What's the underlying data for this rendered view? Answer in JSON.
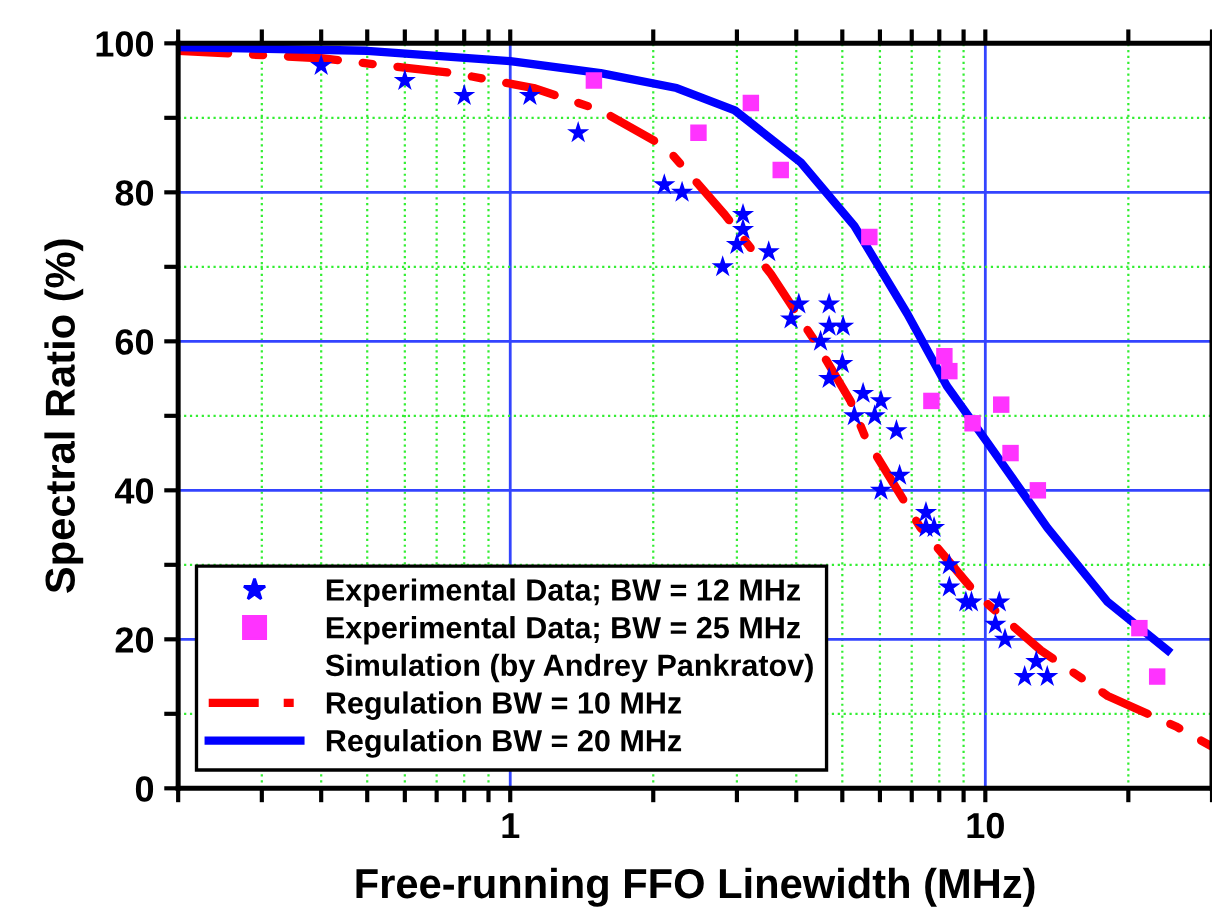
{
  "chart_data": {
    "type": "scatter",
    "xlabel": "Free-running FFO Linewidth (MHz)",
    "ylabel": "Spectral Ratio (%)",
    "log": "x",
    "xlim": [
      0.2,
      30
    ],
    "ylim": [
      0,
      100
    ],
    "xticks": [
      {
        "value": 0.2,
        "label": null
      },
      {
        "value": 0.3,
        "label": null
      },
      {
        "value": 0.4,
        "label": null
      },
      {
        "value": 0.5,
        "label": null
      },
      {
        "value": 0.6,
        "label": null
      },
      {
        "value": 0.7,
        "label": null
      },
      {
        "value": 0.8,
        "label": null
      },
      {
        "value": 0.9,
        "label": null
      },
      1,
      {
        "value": 2,
        "label": null
      },
      {
        "value": 3,
        "label": null
      },
      {
        "value": 4,
        "label": null
      },
      {
        "value": 5,
        "label": null
      },
      {
        "value": 6,
        "label": null
      },
      {
        "value": 7,
        "label": null
      },
      {
        "value": 8,
        "label": null
      },
      {
        "value": 9,
        "label": null
      },
      10,
      {
        "value": 20,
        "label": null
      },
      {
        "value": 30,
        "label": null
      }
    ],
    "yticks": [
      0,
      {
        "value": 10,
        "label": null
      },
      20,
      {
        "value": 30,
        "label": null
      },
      40,
      {
        "value": 50,
        "label": null
      },
      60,
      {
        "value": 70,
        "label": null
      },
      80,
      {
        "value": 90,
        "label": null
      },
      100
    ],
    "grid": true,
    "legend": "bottom left",
    "annotations": [
      "Simulation (by Andrey Pankratov)"
    ],
    "series": [
      {
        "name": "Experimental Data; BW = 12 MHz",
        "marker": "star",
        "color": "#0000ff",
        "x": [
          0.4,
          0.6,
          0.8,
          1.1,
          1.39,
          2.11,
          2.3,
          3.09,
          3.09,
          3.0,
          3.5,
          2.8,
          4.05,
          3.9,
          4.69,
          4.69,
          5.02,
          4.5,
          5.0,
          4.69,
          5.53,
          6.03,
          5.3,
          5.85,
          6.5,
          6.03,
          6.6,
          7.5,
          7.5,
          7.8,
          8.4,
          8.4,
          9.1,
          9.35,
          10.7,
          10.5,
          11.0,
          12.8,
          12.1,
          13.5
        ],
        "values": [
          97,
          95,
          93,
          93,
          88,
          81,
          80,
          77,
          75,
          73,
          72,
          70,
          65,
          63,
          65,
          62,
          62,
          60,
          57,
          55,
          53,
          52,
          50,
          50,
          48,
          40,
          42,
          37,
          35,
          35,
          30,
          27,
          25,
          25,
          25,
          22,
          20,
          17,
          15,
          15
        ]
      },
      {
        "name": "Experimental Data; BW = 25 MHz",
        "marker": "square",
        "color": "#ff33ff",
        "x": [
          1.5,
          3.21,
          2.49,
          3.71,
          5.7,
          8.2,
          8.4,
          7.7,
          10.8,
          9.4,
          11.3,
          12.9,
          21.1,
          23.0
        ],
        "values": [
          95,
          92,
          88,
          83,
          74,
          58,
          56,
          52,
          51.5,
          49,
          45,
          40,
          21.5,
          15
        ]
      },
      {
        "name": "Regulation BW = 10 MHz",
        "type": "line",
        "line_style": "dashdot",
        "color": "#ff0000",
        "x": [
          0.2,
          0.4,
          0.76,
          1.12,
          1.55,
          2.13,
          2.83,
          3.54,
          4.38,
          5.2,
          5.6,
          7.3,
          9.6,
          13.1,
          18.1,
          25.2,
          30
        ],
        "values": [
          99,
          98,
          96,
          94,
          91,
          86,
          77,
          69,
          60,
          52,
          47,
          35,
          26,
          18.5,
          12.4,
          8.3,
          5.6
        ]
      },
      {
        "name": "Regulation BW = 20 MHz",
        "type": "line",
        "line_style": "solid",
        "color": "#0000ff",
        "x": [
          0.2,
          0.5,
          1.0,
          1.55,
          2.24,
          2.97,
          4.09,
          5.3,
          6.85,
          8.3,
          10,
          13.5,
          18.1,
          24.2
        ],
        "values": [
          99.5,
          99,
          97.6,
          96,
          94,
          91,
          84,
          75.5,
          63.7,
          54,
          46.8,
          35,
          25,
          18.5
        ]
      }
    ]
  }
}
